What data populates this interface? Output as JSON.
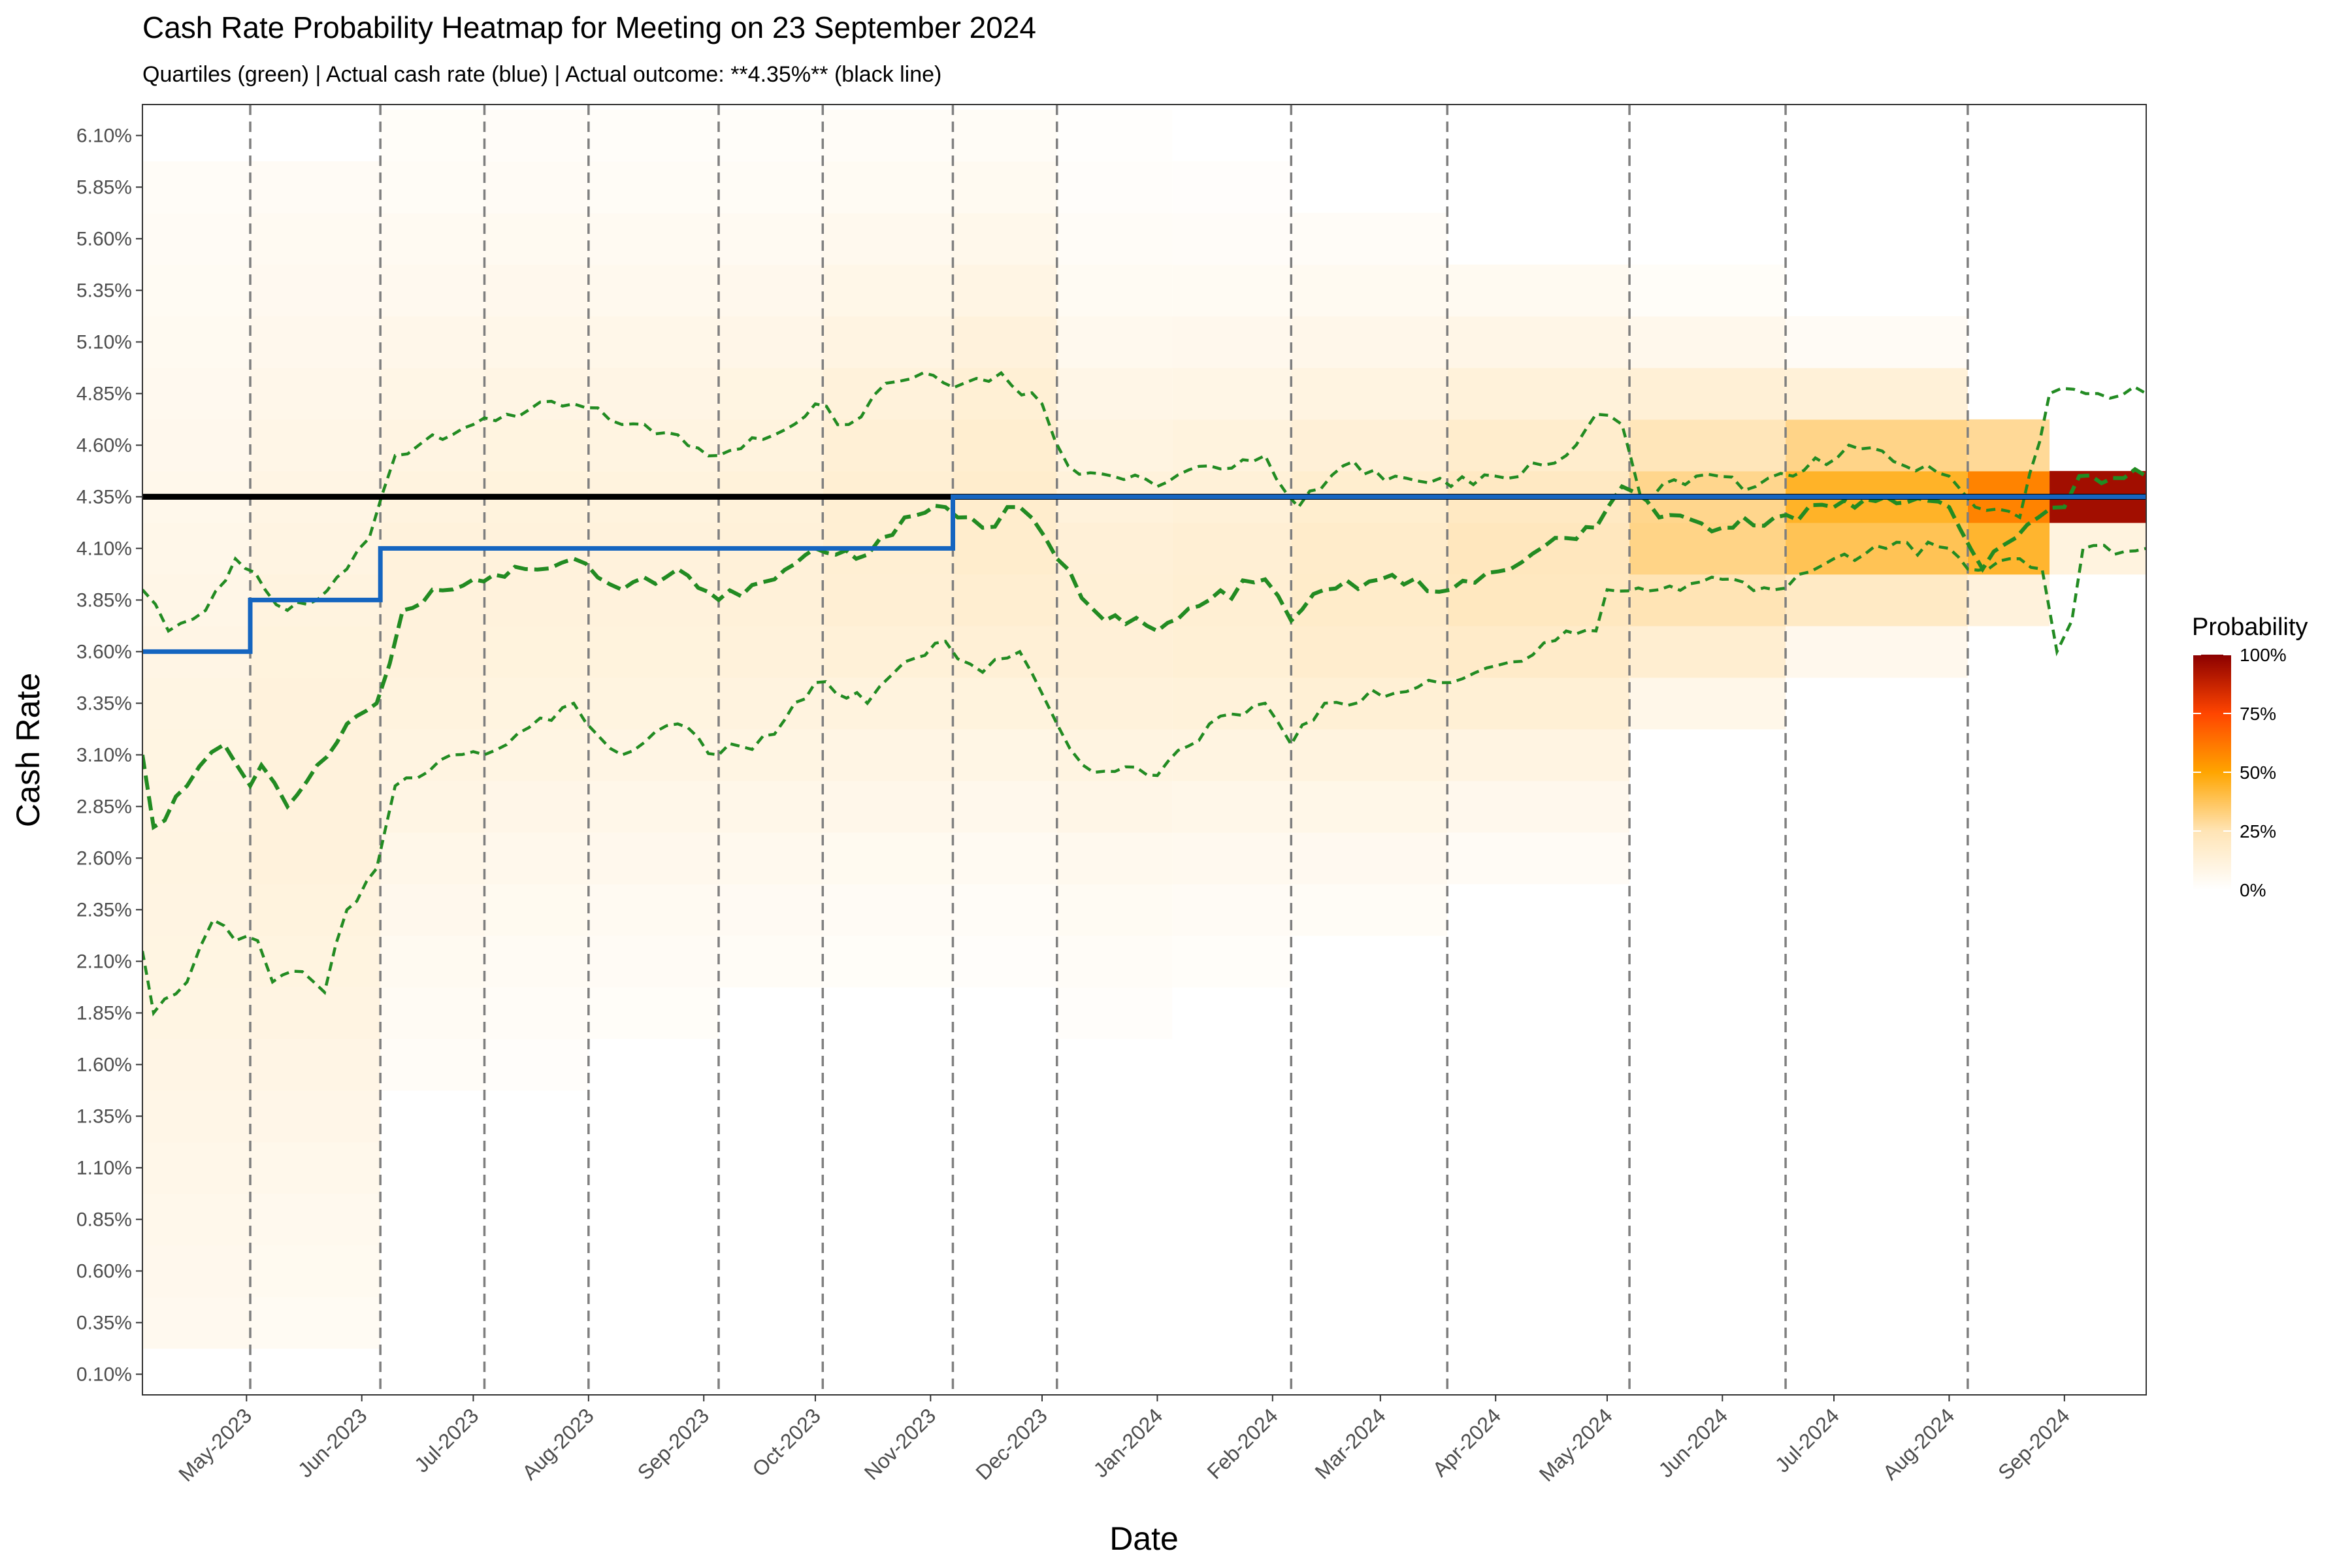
{
  "chart_data": {
    "type": "heatmap",
    "title": "Cash Rate Probability Heatmap for Meeting on 23 September 2024",
    "subtitle": "Quartiles (green) | Actual cash rate (blue) | Actual outcome: **4.35%** (black line)",
    "xlabel": "Date",
    "ylabel": "Cash Rate",
    "x_range": [
      "2023-04-03",
      "2024-09-23"
    ],
    "y_range": [
      0.0,
      6.25
    ],
    "y_ticks": [
      "0.10%",
      "0.35%",
      "0.60%",
      "0.85%",
      "1.10%",
      "1.35%",
      "1.60%",
      "1.85%",
      "2.10%",
      "2.35%",
      "2.60%",
      "2.85%",
      "3.10%",
      "3.35%",
      "3.60%",
      "3.85%",
      "4.10%",
      "4.35%",
      "4.60%",
      "4.85%",
      "5.10%",
      "5.35%",
      "5.60%",
      "5.85%",
      "6.10%"
    ],
    "x_ticks": [
      {
        "label": "May-2023",
        "date": "2023-05-01"
      },
      {
        "label": "Jun-2023",
        "date": "2023-06-01"
      },
      {
        "label": "Jul-2023",
        "date": "2023-07-01"
      },
      {
        "label": "Aug-2023",
        "date": "2023-08-01"
      },
      {
        "label": "Sep-2023",
        "date": "2023-09-01"
      },
      {
        "label": "Oct-2023",
        "date": "2023-10-01"
      },
      {
        "label": "Nov-2023",
        "date": "2023-11-01"
      },
      {
        "label": "Dec-2023",
        "date": "2023-12-01"
      },
      {
        "label": "Jan-2024",
        "date": "2024-01-01"
      },
      {
        "label": "Feb-2024",
        "date": "2024-02-01"
      },
      {
        "label": "Mar-2024",
        "date": "2024-03-01"
      },
      {
        "label": "Apr-2024",
        "date": "2024-04-01"
      },
      {
        "label": "May-2024",
        "date": "2024-05-01"
      },
      {
        "label": "Jun-2024",
        "date": "2024-06-01"
      },
      {
        "label": "Jul-2024",
        "date": "2024-07-01"
      },
      {
        "label": "Aug-2024",
        "date": "2024-08-01"
      },
      {
        "label": "Sep-2024",
        "date": "2024-09-01"
      }
    ],
    "meeting_dates": [
      "2023-05-02",
      "2023-06-06",
      "2023-07-04",
      "2023-08-01",
      "2023-09-05",
      "2023-10-03",
      "2023-11-07",
      "2023-12-05",
      "2024-02-06",
      "2024-03-19",
      "2024-05-07",
      "2024-06-18",
      "2024-08-06"
    ],
    "actual_outcome": 4.35,
    "actual_cash_rate": [
      {
        "date": "2023-04-03",
        "value": 3.6
      },
      {
        "date": "2023-05-02",
        "value": 3.85
      },
      {
        "date": "2023-06-06",
        "value": 4.1
      },
      {
        "date": "2023-11-07",
        "value": 4.35
      },
      {
        "date": "2024-09-23",
        "value": 4.35
      }
    ],
    "quartiles": {
      "q75": [
        {
          "date": "2023-04-03",
          "value": 3.9
        },
        {
          "date": "2023-04-10",
          "value": 3.7
        },
        {
          "date": "2023-04-20",
          "value": 3.8
        },
        {
          "date": "2023-04-28",
          "value": 4.05
        },
        {
          "date": "2023-05-06",
          "value": 3.9
        },
        {
          "date": "2023-05-12",
          "value": 3.8
        },
        {
          "date": "2023-05-20",
          "value": 3.85
        },
        {
          "date": "2023-05-28",
          "value": 4.0
        },
        {
          "date": "2023-06-03",
          "value": 4.15
        },
        {
          "date": "2023-06-10",
          "value": 4.55
        },
        {
          "date": "2023-06-20",
          "value": 4.65
        },
        {
          "date": "2023-07-01",
          "value": 4.7
        },
        {
          "date": "2023-07-10",
          "value": 4.75
        },
        {
          "date": "2023-07-28",
          "value": 4.8
        },
        {
          "date": "2023-08-10",
          "value": 4.7
        },
        {
          "date": "2023-08-25",
          "value": 4.65
        },
        {
          "date": "2023-09-05",
          "value": 4.55
        },
        {
          "date": "2023-09-20",
          "value": 4.65
        },
        {
          "date": "2023-10-01",
          "value": 4.8
        },
        {
          "date": "2023-10-10",
          "value": 4.7
        },
        {
          "date": "2023-10-20",
          "value": 4.9
        },
        {
          "date": "2023-10-30",
          "value": 4.95
        },
        {
          "date": "2023-11-10",
          "value": 4.9
        },
        {
          "date": "2023-11-20",
          "value": 4.95
        },
        {
          "date": "2023-12-01",
          "value": 4.8
        },
        {
          "date": "2023-12-08",
          "value": 4.5
        },
        {
          "date": "2023-12-20",
          "value": 4.45
        },
        {
          "date": "2024-01-01",
          "value": 4.4
        },
        {
          "date": "2024-01-15",
          "value": 4.5
        },
        {
          "date": "2024-01-30",
          "value": 4.55
        },
        {
          "date": "2024-02-08",
          "value": 4.3
        },
        {
          "date": "2024-02-20",
          "value": 4.5
        },
        {
          "date": "2024-03-05",
          "value": 4.45
        },
        {
          "date": "2024-03-20",
          "value": 4.4
        },
        {
          "date": "2024-04-01",
          "value": 4.45
        },
        {
          "date": "2024-04-20",
          "value": 4.55
        },
        {
          "date": "2024-04-28",
          "value": 4.75
        },
        {
          "date": "2024-05-05",
          "value": 4.7
        },
        {
          "date": "2024-05-10",
          "value": 4.35
        },
        {
          "date": "2024-05-25",
          "value": 4.45
        },
        {
          "date": "2024-06-10",
          "value": 4.4
        },
        {
          "date": "2024-06-20",
          "value": 4.45
        },
        {
          "date": "2024-07-05",
          "value": 4.6
        },
        {
          "date": "2024-07-20",
          "value": 4.5
        },
        {
          "date": "2024-08-01",
          "value": 4.45
        },
        {
          "date": "2024-08-08",
          "value": 4.3
        },
        {
          "date": "2024-08-20",
          "value": 4.25
        },
        {
          "date": "2024-08-28",
          "value": 4.85
        },
        {
          "date": "2024-09-10",
          "value": 4.85
        },
        {
          "date": "2024-09-23",
          "value": 4.85
        }
      ],
      "q50": [
        {
          "date": "2023-04-03",
          "value": 3.1
        },
        {
          "date": "2023-04-06",
          "value": 2.75
        },
        {
          "date": "2023-04-15",
          "value": 2.95
        },
        {
          "date": "2023-04-25",
          "value": 3.15
        },
        {
          "date": "2023-05-02",
          "value": 2.95
        },
        {
          "date": "2023-05-05",
          "value": 3.05
        },
        {
          "date": "2023-05-12",
          "value": 2.85
        },
        {
          "date": "2023-05-20",
          "value": 3.05
        },
        {
          "date": "2023-05-28",
          "value": 3.25
        },
        {
          "date": "2023-06-05",
          "value": 3.35
        },
        {
          "date": "2023-06-12",
          "value": 3.8
        },
        {
          "date": "2023-06-20",
          "value": 3.9
        },
        {
          "date": "2023-07-01",
          "value": 3.95
        },
        {
          "date": "2023-07-15",
          "value": 4.0
        },
        {
          "date": "2023-07-28",
          "value": 4.05
        },
        {
          "date": "2023-08-10",
          "value": 3.9
        },
        {
          "date": "2023-08-25",
          "value": 4.0
        },
        {
          "date": "2023-09-05",
          "value": 3.85
        },
        {
          "date": "2023-09-20",
          "value": 3.95
        },
        {
          "date": "2023-10-01",
          "value": 4.1
        },
        {
          "date": "2023-10-12",
          "value": 4.05
        },
        {
          "date": "2023-10-25",
          "value": 4.25
        },
        {
          "date": "2023-11-05",
          "value": 4.3
        },
        {
          "date": "2023-11-15",
          "value": 4.2
        },
        {
          "date": "2023-11-25",
          "value": 4.3
        },
        {
          "date": "2023-12-05",
          "value": 4.05
        },
        {
          "date": "2023-12-15",
          "value": 3.8
        },
        {
          "date": "2024-01-01",
          "value": 3.7
        },
        {
          "date": "2024-01-15",
          "value": 3.85
        },
        {
          "date": "2024-01-30",
          "value": 3.95
        },
        {
          "date": "2024-02-06",
          "value": 3.75
        },
        {
          "date": "2024-02-15",
          "value": 3.9
        },
        {
          "date": "2024-03-01",
          "value": 3.95
        },
        {
          "date": "2024-03-20",
          "value": 3.9
        },
        {
          "date": "2024-04-05",
          "value": 4.0
        },
        {
          "date": "2024-04-20",
          "value": 4.15
        },
        {
          "date": "2024-04-28",
          "value": 4.2
        },
        {
          "date": "2024-05-05",
          "value": 4.4
        },
        {
          "date": "2024-05-15",
          "value": 4.25
        },
        {
          "date": "2024-06-01",
          "value": 4.2
        },
        {
          "date": "2024-06-15",
          "value": 4.25
        },
        {
          "date": "2024-07-01",
          "value": 4.3
        },
        {
          "date": "2024-07-15",
          "value": 4.35
        },
        {
          "date": "2024-08-01",
          "value": 4.3
        },
        {
          "date": "2024-08-10",
          "value": 4.0
        },
        {
          "date": "2024-08-25",
          "value": 4.25
        },
        {
          "date": "2024-09-01",
          "value": 4.3
        },
        {
          "date": "2024-09-05",
          "value": 4.45
        },
        {
          "date": "2024-09-23",
          "value": 4.45
        }
      ],
      "q25": [
        {
          "date": "2023-04-03",
          "value": 2.15
        },
        {
          "date": "2023-04-06",
          "value": 1.85
        },
        {
          "date": "2023-04-15",
          "value": 2.0
        },
        {
          "date": "2023-04-22",
          "value": 2.3
        },
        {
          "date": "2023-04-28",
          "value": 2.2
        },
        {
          "date": "2023-05-04",
          "value": 2.2
        },
        {
          "date": "2023-05-08",
          "value": 2.0
        },
        {
          "date": "2023-05-16",
          "value": 2.05
        },
        {
          "date": "2023-05-22",
          "value": 1.95
        },
        {
          "date": "2023-05-28",
          "value": 2.35
        },
        {
          "date": "2023-06-05",
          "value": 2.55
        },
        {
          "date": "2023-06-10",
          "value": 2.95
        },
        {
          "date": "2023-06-25",
          "value": 3.1
        },
        {
          "date": "2023-07-10",
          "value": 3.15
        },
        {
          "date": "2023-07-28",
          "value": 3.35
        },
        {
          "date": "2023-08-10",
          "value": 3.1
        },
        {
          "date": "2023-08-25",
          "value": 3.25
        },
        {
          "date": "2023-09-05",
          "value": 3.1
        },
        {
          "date": "2023-09-20",
          "value": 3.2
        },
        {
          "date": "2023-10-01",
          "value": 3.45
        },
        {
          "date": "2023-10-15",
          "value": 3.35
        },
        {
          "date": "2023-10-25",
          "value": 3.55
        },
        {
          "date": "2023-11-05",
          "value": 3.65
        },
        {
          "date": "2023-11-15",
          "value": 3.5
        },
        {
          "date": "2023-11-25",
          "value": 3.6
        },
        {
          "date": "2023-12-05",
          "value": 3.25
        },
        {
          "date": "2023-12-12",
          "value": 3.05
        },
        {
          "date": "2024-01-01",
          "value": 3.0
        },
        {
          "date": "2024-01-15",
          "value": 3.25
        },
        {
          "date": "2024-01-30",
          "value": 3.35
        },
        {
          "date": "2024-02-06",
          "value": 3.15
        },
        {
          "date": "2024-02-15",
          "value": 3.35
        },
        {
          "date": "2024-03-05",
          "value": 3.4
        },
        {
          "date": "2024-03-20",
          "value": 3.45
        },
        {
          "date": "2024-04-05",
          "value": 3.55
        },
        {
          "date": "2024-04-20",
          "value": 3.7
        },
        {
          "date": "2024-04-28",
          "value": 3.7
        },
        {
          "date": "2024-05-01",
          "value": 3.9
        },
        {
          "date": "2024-05-15",
          "value": 3.9
        },
        {
          "date": "2024-06-01",
          "value": 3.95
        },
        {
          "date": "2024-06-15",
          "value": 3.9
        },
        {
          "date": "2024-07-01",
          "value": 4.05
        },
        {
          "date": "2024-07-15",
          "value": 4.1
        },
        {
          "date": "2024-08-01",
          "value": 4.1
        },
        {
          "date": "2024-08-06",
          "value": 4.0
        },
        {
          "date": "2024-08-20",
          "value": 4.05
        },
        {
          "date": "2024-08-26",
          "value": 4.0
        },
        {
          "date": "2024-08-30",
          "value": 3.6
        },
        {
          "date": "2024-09-03",
          "value": 3.75
        },
        {
          "date": "2024-09-06",
          "value": 4.1
        },
        {
          "date": "2024-09-23",
          "value": 4.1
        }
      ]
    },
    "heatmap_bands": [
      {
        "start": "2023-04-03",
        "end": "2023-05-02",
        "center": 2.6,
        "spread": 2.0,
        "peak": 0.1,
        "low": 0.2,
        "high": 5.9
      },
      {
        "start": "2023-05-02",
        "end": "2023-06-06",
        "center": 3.0,
        "spread": 1.8,
        "peak": 0.12,
        "low": 0.35,
        "high": 5.95
      },
      {
        "start": "2023-06-06",
        "end": "2023-07-04",
        "center": 3.8,
        "spread": 1.25,
        "peak": 0.12,
        "low": 1.45,
        "high": 6.25
      },
      {
        "start": "2023-07-04",
        "end": "2023-08-01",
        "center": 3.95,
        "spread": 1.2,
        "peak": 0.12,
        "low": 1.5,
        "high": 6.25
      },
      {
        "start": "2023-08-01",
        "end": "2023-09-05",
        "center": 3.95,
        "spread": 1.15,
        "peak": 0.12,
        "low": 1.75,
        "high": 6.25
      },
      {
        "start": "2023-09-05",
        "end": "2023-10-03",
        "center": 4.0,
        "spread": 1.1,
        "peak": 0.13,
        "low": 1.95,
        "high": 6.25
      },
      {
        "start": "2023-10-03",
        "end": "2023-11-07",
        "center": 4.15,
        "spread": 1.05,
        "peak": 0.15,
        "low": 1.95,
        "high": 6.25
      },
      {
        "start": "2023-11-07",
        "end": "2023-12-05",
        "center": 4.25,
        "spread": 1.0,
        "peak": 0.17,
        "low": 1.95,
        "high": 6.25
      },
      {
        "start": "2023-12-05",
        "end": "2024-01-05",
        "center": 3.85,
        "spread": 0.95,
        "peak": 0.14,
        "low": 1.7,
        "high": 6.1
      },
      {
        "start": "2024-01-05",
        "end": "2024-02-06",
        "center": 3.9,
        "spread": 0.9,
        "peak": 0.15,
        "low": 1.95,
        "high": 5.9
      },
      {
        "start": "2024-02-06",
        "end": "2024-03-19",
        "center": 3.95,
        "spread": 0.85,
        "peak": 0.18,
        "low": 2.2,
        "high": 5.65
      },
      {
        "start": "2024-03-19",
        "end": "2024-05-07",
        "center": 4.05,
        "spread": 0.75,
        "peak": 0.22,
        "low": 2.45,
        "high": 5.45
      },
      {
        "start": "2024-05-07",
        "end": "2024-06-18",
        "center": 4.2,
        "spread": 0.5,
        "peak": 0.32,
        "low": 3.2,
        "high": 5.4
      },
      {
        "start": "2024-06-18",
        "end": "2024-08-06",
        "center": 4.3,
        "spread": 0.35,
        "peak": 0.45,
        "low": 3.45,
        "high": 5.3
      },
      {
        "start": "2024-08-06",
        "end": "2024-08-28",
        "center": 4.3,
        "spread": 0.25,
        "peak": 0.6,
        "low": 3.7,
        "high": 4.75
      },
      {
        "start": "2024-08-28",
        "end": "2024-09-23",
        "center": 4.35,
        "spread": 0.12,
        "peak": 0.95,
        "low": 3.95,
        "high": 4.5
      }
    ],
    "legend": {
      "title": "Probability",
      "labels": [
        "100%",
        "75%",
        "50%",
        "25%",
        "0%"
      ],
      "colors": [
        "#ffffff",
        "#ffe4b5",
        "#ffa500",
        "#ff4500",
        "#8b0000"
      ],
      "position": "right"
    },
    "colors": {
      "quartile": "#228b22",
      "actual_cash_rate": "#1565c0",
      "actual_outcome": "#000000",
      "meeting_line": "#7f7f7f",
      "panel_border": "#333333"
    },
    "grid": false
  }
}
